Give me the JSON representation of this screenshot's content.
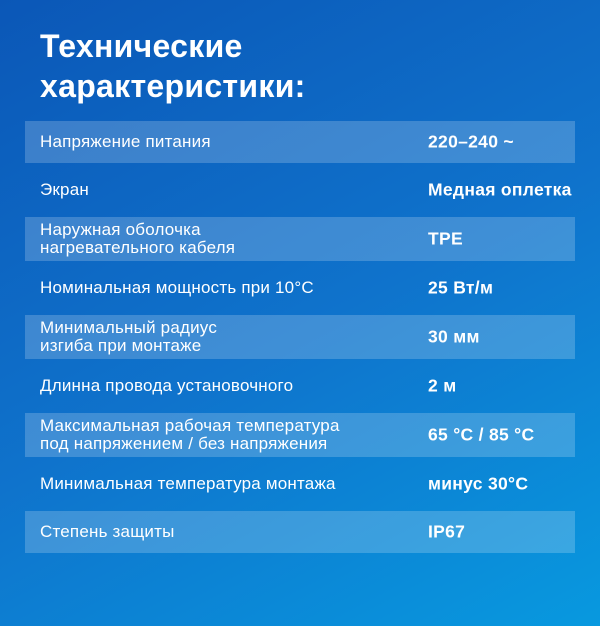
{
  "title": "Технические\nхарактеристики:",
  "colors": {
    "background_top": "#0b57b7",
    "background_bottom": "#0899df",
    "row_band": "rgba(255,255,255,0.20)",
    "text": "#ffffff"
  },
  "table": {
    "rows": [
      {
        "label": "Напряжение питания",
        "value": "220–240 ~"
      },
      {
        "label": "Экран",
        "value": "Медная оплетка"
      },
      {
        "label": "Наружная оболочка\nнагревательного кабеля",
        "value": "TPE"
      },
      {
        "label": "Номинальная мощность при 10°С",
        "value": "25 Вт/м"
      },
      {
        "label": "Минимальный радиус\nизгиба при монтаже",
        "value": "30 мм"
      },
      {
        "label": "Длинна провода установочного",
        "value": "2 м"
      },
      {
        "label": "Максимальная рабочая температура\nпод напряжением / без напряжения",
        "value": "65 °С / 85 °С"
      },
      {
        "label": "Минимальная температура монтажа",
        "value": "минус 30°С"
      },
      {
        "label": "Степень защиты",
        "value": "IP67"
      }
    ]
  }
}
